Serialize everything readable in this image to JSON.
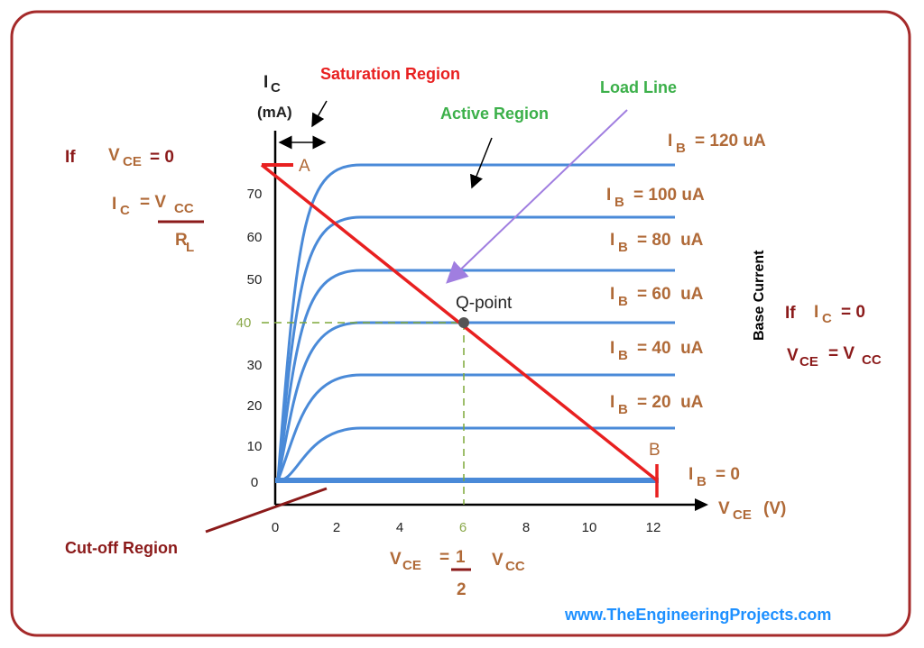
{
  "y_axis": {
    "symbol": "I",
    "sub": "C",
    "unit": "(mA)",
    "ticks": [
      "0",
      "10",
      "20",
      "30",
      "40",
      "50",
      "60",
      "70"
    ]
  },
  "x_axis": {
    "symbol": "V",
    "sub": "CE",
    "unit": "(V)",
    "ticks": [
      "0",
      "2",
      "4",
      "6",
      "8",
      "10",
      "12"
    ]
  },
  "regions": {
    "saturation": "Saturation Region",
    "active": "Active Region",
    "load_line": "Load Line",
    "cutoff": "Cut-off Region"
  },
  "points": {
    "a": "A",
    "b": "B",
    "q": "Q-point"
  },
  "curves": [
    {
      "symbol": "I",
      "sub": "B",
      "text": "= 120 uA"
    },
    {
      "symbol": "I",
      "sub": "B",
      "text": "= 100 uA"
    },
    {
      "symbol": "I",
      "sub": "B",
      "text": "= 80  uA"
    },
    {
      "symbol": "I",
      "sub": "B",
      "text": "= 60  uA"
    },
    {
      "symbol": "I",
      "sub": "B",
      "text": "= 40  uA"
    },
    {
      "symbol": "I",
      "sub": "B",
      "text": "= 20  uA"
    },
    {
      "symbol": "I",
      "sub": "B",
      "text": "= 0"
    }
  ],
  "base_current": "Base Current",
  "left_note": {
    "if": "If",
    "v": "V",
    "v_sub": "CE",
    "v_eq": "=  0",
    "i": "I",
    "i_sub": "C",
    "i_eq": "= V",
    "i_eq_sub": "CC",
    "den": "R",
    "den_sub": "L"
  },
  "right_note": {
    "if": "If",
    "i": "I",
    "i_sub": "C",
    "i_eq": "=  0",
    "v": "V",
    "v_sub": "CE",
    "v_eq": "= V",
    "v_eq_sub": "CC"
  },
  "bottom_note": {
    "v": "V",
    "v_sub": "CE",
    "eq": "=",
    "num": "1",
    "den": "2",
    "vcc": "V",
    "vcc_sub": "CC"
  },
  "footer": "www.TheEngineeringProjects.com"
}
